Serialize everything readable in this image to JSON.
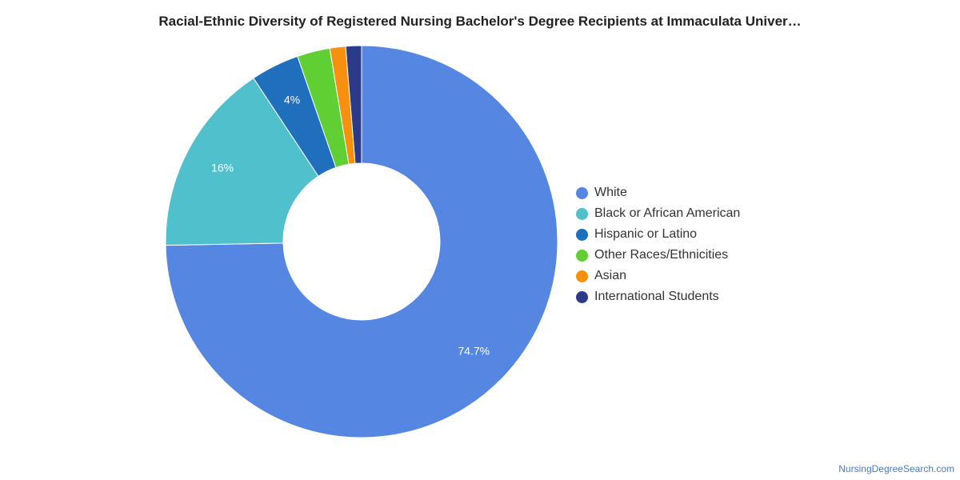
{
  "chart_data": {
    "type": "pie",
    "title": "Racial-Ethnic Diversity of Registered Nursing Bachelor's Degree Recipients at Immaculata Univer…",
    "categories": [
      "White",
      "Black or African American",
      "Hispanic or Latino",
      "Other Races/Ethnicities",
      "Asian",
      "International Students"
    ],
    "values": [
      74.7,
      16,
      4,
      2.7,
      1.3,
      1.3
    ],
    "data_labels": [
      "74.7%",
      "16%",
      "4%",
      "",
      "",
      ""
    ],
    "colors": [
      "#5486e2",
      "#50c0cc",
      "#1f6fbd",
      "#5fcf34",
      "#f7900f",
      "#2c3a8a"
    ],
    "donut": true,
    "legend_position": "right"
  },
  "credit": "NursingDegreeSearch.com"
}
